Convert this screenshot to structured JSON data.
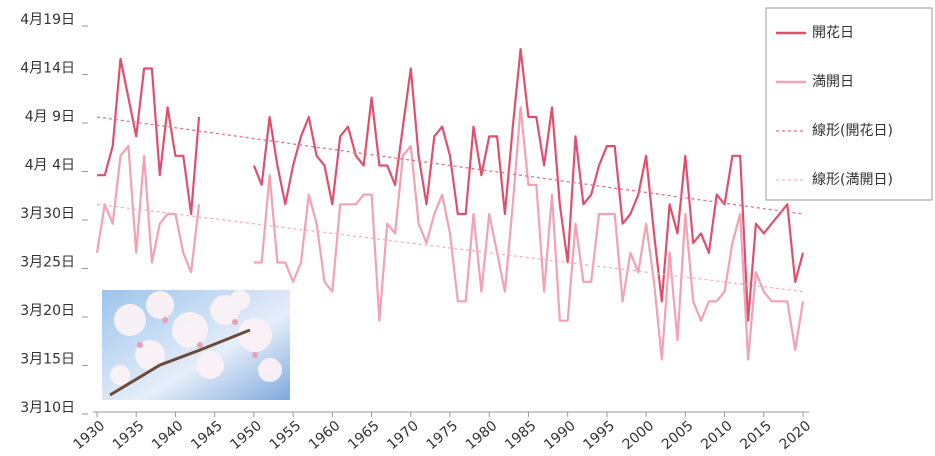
{
  "chart_data": {
    "type": "line",
    "x": [
      1930,
      1931,
      1932,
      1933,
      1934,
      1935,
      1936,
      1937,
      1938,
      1939,
      1940,
      1941,
      1942,
      1943,
      1944,
      1945,
      1946,
      1947,
      1948,
      1949,
      1950,
      1951,
      1952,
      1953,
      1954,
      1955,
      1956,
      1957,
      1958,
      1959,
      1960,
      1961,
      1962,
      1963,
      1964,
      1965,
      1966,
      1967,
      1968,
      1969,
      1970,
      1971,
      1972,
      1973,
      1974,
      1975,
      1976,
      1977,
      1978,
      1979,
      1980,
      1981,
      1982,
      1983,
      1984,
      1985,
      1986,
      1987,
      1988,
      1989,
      1990,
      1991,
      1992,
      1993,
      1994,
      1995,
      1996,
      1997,
      1998,
      1999,
      2000,
      2001,
      2002,
      2003,
      2004,
      2005,
      2006,
      2007,
      2008,
      2009,
      2010,
      2011,
      2012,
      2013,
      2014,
      2015,
      2016,
      2017,
      2018,
      2019,
      2020
    ],
    "series": [
      {
        "name": "開花日",
        "color": "#e0506e",
        "values": [
          93,
          93,
          96,
          105,
          101,
          97,
          104,
          104,
          93,
          100,
          95,
          95,
          89,
          99,
          null,
          null,
          null,
          null,
          null,
          null,
          94,
          92,
          99,
          94,
          90,
          94,
          97,
          99,
          95,
          94,
          90,
          97,
          98,
          95,
          94,
          101,
          94,
          94,
          92,
          98,
          104,
          95,
          90,
          97,
          98,
          95,
          89,
          89,
          98,
          93,
          97,
          97,
          89,
          98,
          106,
          99,
          99,
          94,
          100,
          90,
          84,
          97,
          90,
          91,
          94,
          96,
          96,
          88,
          89,
          91,
          95,
          87,
          80,
          90,
          87,
          95,
          86,
          87,
          85,
          91,
          90,
          95,
          95,
          78,
          88,
          87,
          88,
          89,
          90,
          82,
          85
        ]
      },
      {
        "name": "満開日",
        "color": "#f2a2b2",
        "values": [
          85,
          90,
          88,
          95,
          96,
          85,
          95,
          84,
          88,
          89,
          89,
          85,
          83,
          90,
          null,
          null,
          null,
          null,
          null,
          null,
          84,
          84,
          93,
          84,
          84,
          82,
          84,
          91,
          88,
          82,
          81,
          90,
          90,
          90,
          91,
          91,
          78,
          88,
          87,
          95,
          96,
          88,
          86,
          89,
          91,
          87,
          80,
          80,
          89,
          81,
          89,
          85,
          81,
          90,
          100,
          92,
          92,
          81,
          91,
          78,
          78,
          88,
          82,
          82,
          89,
          89,
          89,
          80,
          85,
          83,
          88,
          82,
          74,
          85,
          76,
          89,
          80,
          78,
          80,
          80,
          81,
          86,
          89,
          74,
          83,
          81,
          80,
          80,
          80,
          75,
          80
        ]
      },
      {
        "name": "線形(開花日)",
        "color": "#e8708a",
        "dashed": true,
        "x": [
          1930,
          2020
        ],
        "values": [
          99,
          89
        ]
      },
      {
        "name": "線形(満開日)",
        "color": "#f4b0c4",
        "dashed": true,
        "x": [
          1930,
          2020
        ],
        "values": [
          90,
          81
        ]
      }
    ],
    "xlim": [
      1930,
      2020
    ],
    "xticks": [
      1930,
      1935,
      1940,
      1945,
      1950,
      1955,
      1960,
      1965,
      1970,
      1975,
      1980,
      1985,
      1990,
      1995,
      2000,
      2005,
      2010,
      2015,
      2020
    ],
    "ylim": [
      69,
      109
    ],
    "yticks": [
      {
        "value": 69,
        "label": "3月10日"
      },
      {
        "value": 74,
        "label": "3月15日"
      },
      {
        "value": 79,
        "label": "3月20日"
      },
      {
        "value": 84,
        "label": "3月25日"
      },
      {
        "value": 89,
        "label": "3月30日"
      },
      {
        "value": 94,
        "label": "4月 4日"
      },
      {
        "value": 99,
        "label": "4月 9日"
      },
      {
        "value": 104,
        "label": "4月14日"
      },
      {
        "value": 109,
        "label": "4月19日"
      }
    ],
    "grid": false,
    "legend": "top-right"
  }
}
